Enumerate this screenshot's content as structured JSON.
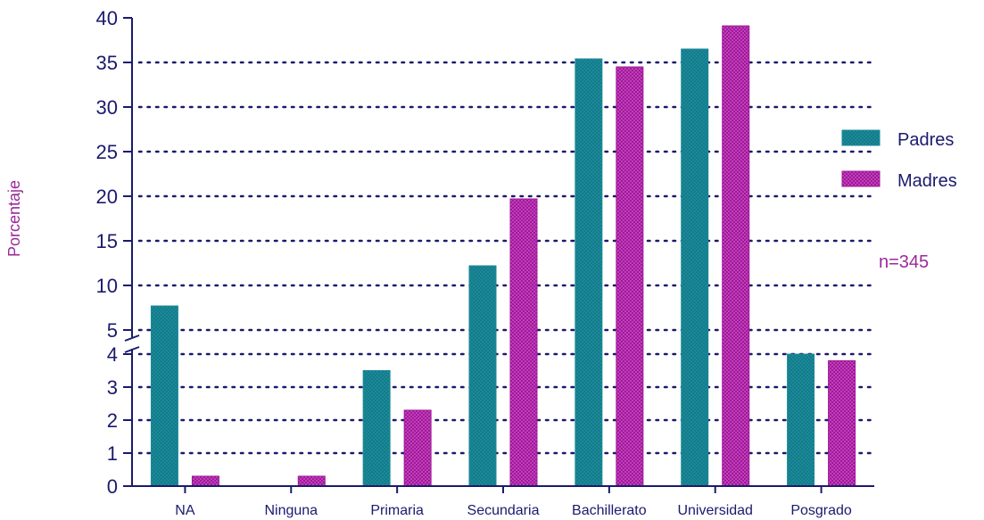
{
  "chart_data": {
    "type": "bar",
    "categories": [
      "NA",
      "Ninguna",
      "Primaria",
      "Secundaria",
      "Bachillerato",
      "Universidad",
      "Posgrado"
    ],
    "series": [
      {
        "name": "Padres",
        "values": [
          7.7,
          0,
          3.5,
          12.2,
          35.4,
          36.5,
          4.6
        ]
      },
      {
        "name": "Madres",
        "values": [
          0.3,
          0.3,
          2.3,
          19.7,
          34.5,
          39.1,
          3.8
        ]
      }
    ],
    "title": "",
    "xlabel": "",
    "ylabel": "Porcentaje",
    "ylim": [
      0,
      40
    ],
    "axis_break": {
      "lower_range": [
        0,
        4
      ],
      "upper_range": [
        5,
        40
      ]
    },
    "lower_ticks": [
      "0",
      "1",
      "2",
      "3",
      "4"
    ],
    "upper_ticks": [
      "5",
      "10",
      "15",
      "20",
      "25",
      "30",
      "35",
      "40"
    ],
    "grid": true,
    "legend_position": "right",
    "annotation": "n=345",
    "colors": {
      "Padres": "#1a8a9a",
      "Madres": "#a0189a",
      "axis": "#1a1a6e",
      "grid": "#1a1a6e"
    }
  }
}
